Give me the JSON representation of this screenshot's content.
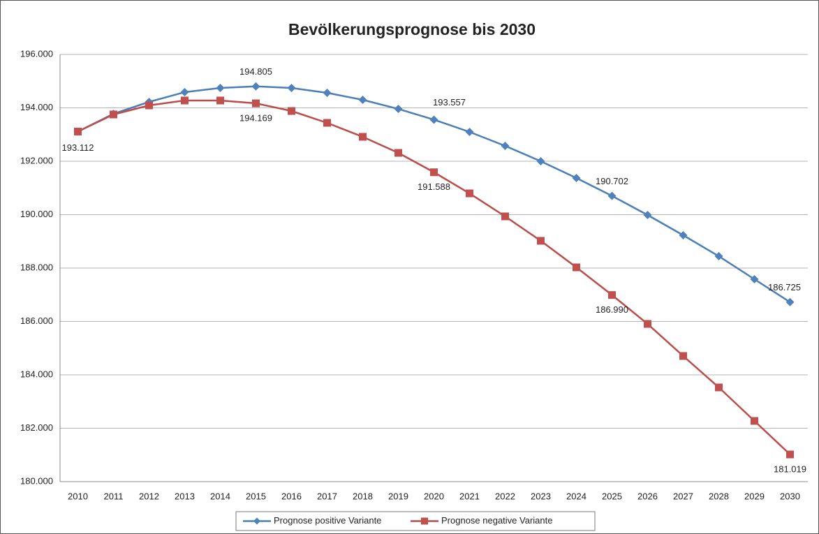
{
  "chart_data": {
    "type": "line",
    "title": "Bevölkerungsprognose bis 2030",
    "categories": [
      "2010",
      "2011",
      "2012",
      "2013",
      "2014",
      "2015",
      "2016",
      "2017",
      "2018",
      "2019",
      "2020",
      "2021",
      "2022",
      "2023",
      "2024",
      "2025",
      "2026",
      "2027",
      "2028",
      "2029",
      "2030"
    ],
    "series": [
      {
        "name": "Prognose positive Variante",
        "color": "#4a7ebb",
        "values": [
          193112,
          193778,
          194222,
          194588,
          194745,
          194805,
          194745,
          194562,
          194300,
          193960,
          193557,
          193098,
          192575,
          192000,
          191373,
          190702,
          189987,
          189229,
          188444,
          187582,
          186725
        ],
        "value_labels": [
          "193.112",
          null,
          null,
          null,
          null,
          "194.805",
          null,
          null,
          null,
          null,
          "193.557",
          null,
          null,
          null,
          null,
          "190.702",
          null,
          null,
          null,
          null,
          "186.725"
        ]
      },
      {
        "name": "Prognose negative Variante",
        "color": "#be4b48",
        "values": [
          193112,
          193752,
          194092,
          194275,
          194275,
          194169,
          193882,
          193438,
          192915,
          192314,
          191588,
          190797,
          189935,
          189020,
          188026,
          186990,
          185908,
          184706,
          183529,
          182275,
          181019
        ],
        "value_labels": [
          null,
          null,
          null,
          null,
          null,
          "194.169",
          null,
          null,
          null,
          null,
          "191.588",
          null,
          null,
          null,
          null,
          "186.990",
          null,
          null,
          null,
          null,
          "181.019"
        ]
      }
    ],
    "ylim": [
      180000,
      196000
    ],
    "yticks": [
      {
        "value": 180000,
        "label": "180.000"
      },
      {
        "value": 182000,
        "label": "182.000"
      },
      {
        "value": 184000,
        "label": "184.000"
      },
      {
        "value": 186000,
        "label": "186.000"
      },
      {
        "value": 188000,
        "label": "188.000"
      },
      {
        "value": 190000,
        "label": "190.000"
      },
      {
        "value": 192000,
        "label": "192.000"
      },
      {
        "value": 194000,
        "label": "194.000"
      },
      {
        "value": 196000,
        "label": "196.000"
      }
    ],
    "grid": true,
    "legend": "bottom"
  }
}
